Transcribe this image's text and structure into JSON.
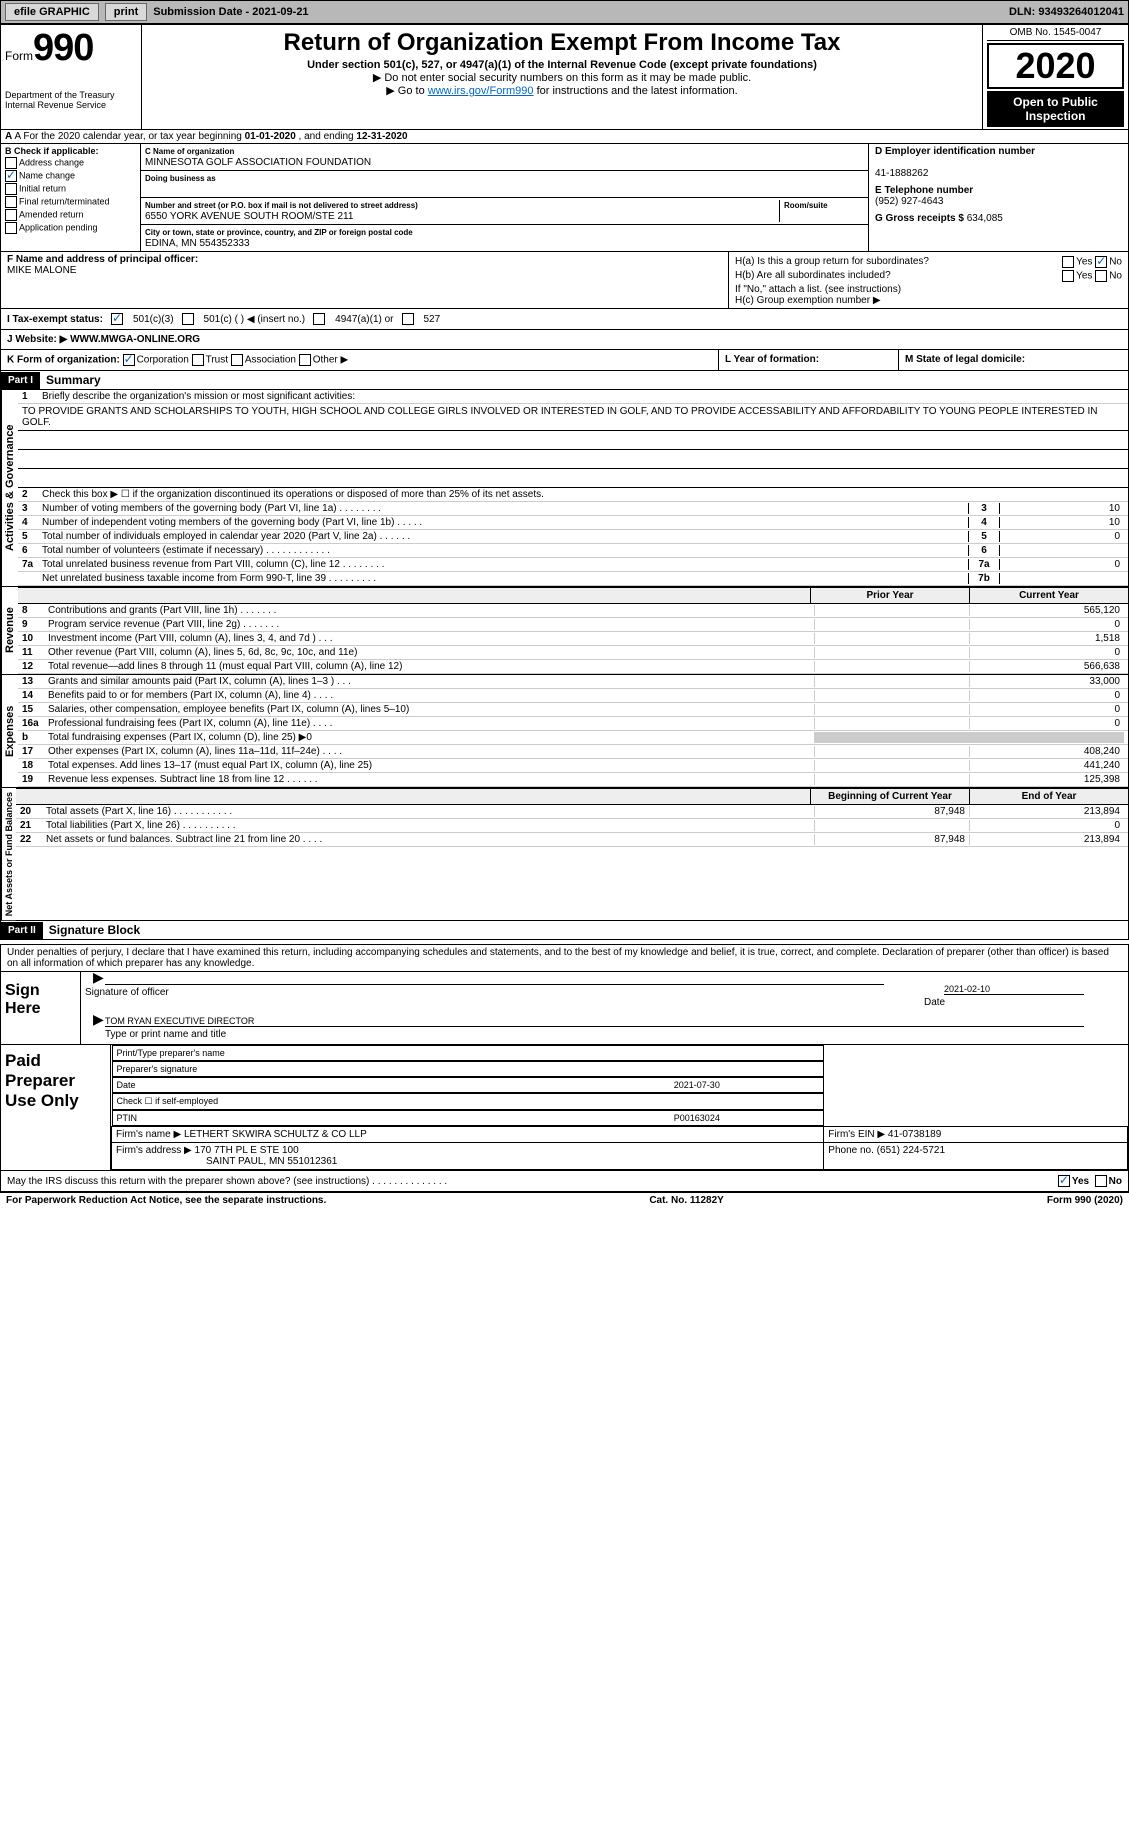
{
  "topbar": {
    "efile": "efile GRAPHIC",
    "print": "print",
    "sub_label": "Submission Date - ",
    "sub_date": "2021-09-21",
    "dln_label": "DLN: ",
    "dln": "93493264012041"
  },
  "header": {
    "form_word": "Form",
    "form_num": "990",
    "dept": "Department of the Treasury\nInternal Revenue Service",
    "title": "Return of Organization Exempt From Income Tax",
    "subtitle": "Under section 501(c), 527, or 4947(a)(1) of the Internal Revenue Code (except private foundations)",
    "note1": "▶ Do not enter social security numbers on this form as it may be made public.",
    "note2a": "▶ Go to ",
    "note2link": "www.irs.gov/Form990",
    "note2b": " for instructions and the latest information.",
    "omb": "OMB No. 1545-0047",
    "year": "2020",
    "open": "Open to Public Inspection"
  },
  "lineA": {
    "pre": "A For the 2020 calendar year, or tax year beginning ",
    "begin": "01-01-2020",
    "mid": " , and ending ",
    "end": "12-31-2020"
  },
  "colB": {
    "title": "B Check if applicable:",
    "items": [
      "Address change",
      "Name change",
      "Initial return",
      "Final return/terminated",
      "Amended return",
      "Application pending"
    ],
    "checked": [
      false,
      true,
      false,
      false,
      false,
      false
    ]
  },
  "colC": {
    "name_lbl": "C Name of organization",
    "name": "MINNESOTA GOLF ASSOCIATION FOUNDATION",
    "dba_lbl": "Doing business as",
    "dba": "",
    "addr_lbl": "Number and street (or P.O. box if mail is not delivered to street address)",
    "room_lbl": "Room/suite",
    "addr": "6550 YORK AVENUE SOUTH ROOM/STE 211",
    "city_lbl": "City or town, state or province, country, and ZIP or foreign postal code",
    "city": "EDINA, MN  554352333"
  },
  "colD": {
    "ein_lbl": "D Employer identification number",
    "ein": "41-1888262",
    "phone_lbl": "E Telephone number",
    "phone": "(952) 927-4643",
    "gross_lbl": "G Gross receipts $ ",
    "gross": "634,085"
  },
  "secF": {
    "lbl": "F Name and address of principal officer:",
    "name": "MIKE MALONE"
  },
  "secH": {
    "a": "H(a)  Is this a group return for subordinates?",
    "a_yes": "Yes",
    "a_no": "No",
    "b": "H(b)  Are all subordinates included?",
    "b_yes": "Yes",
    "b_no": "No",
    "b_note": "If \"No,\" attach a list. (see instructions)",
    "c": "H(c)  Group exemption number ▶"
  },
  "taxstatus": {
    "lbl": "I   Tax-exempt status:",
    "o1": "501(c)(3)",
    "o2": "501(c) (  ) ◀ (insert no.)",
    "o3": "4947(a)(1) or",
    "o4": "527"
  },
  "website": {
    "lbl": "J   Website: ▶",
    "val": "WWW.MWGA-ONLINE.ORG"
  },
  "lineK": {
    "lbl": "K Form of organization:",
    "o1": "Corporation",
    "o2": "Trust",
    "o3": "Association",
    "o4": "Other ▶"
  },
  "lineL": {
    "lbl": "L Year of formation:",
    "val": ""
  },
  "lineM": {
    "lbl": "M State of legal domicile:",
    "val": ""
  },
  "part1": {
    "hdr": "Part I",
    "title": "Summary"
  },
  "summary": {
    "q1": "Briefly describe the organization's mission or most significant activities:",
    "mission": "TO PROVIDE GRANTS AND SCHOLARSHIPS TO YOUTH, HIGH SCHOOL AND COLLEGE GIRLS INVOLVED OR INTERESTED IN GOLF, AND TO PROVIDE ACCESSABILITY AND AFFORDABILITY TO YOUNG PEOPLE INTERESTED IN GOLF.",
    "q2": "Check this box ▶ ☐  if the organization discontinued its operations or disposed of more than 25% of its net assets.",
    "lines": [
      {
        "n": "3",
        "t": "Number of voting members of the governing body (Part VI, line 1a)   .    .    .    .    .    .    .    .",
        "b": "3",
        "v": "10"
      },
      {
        "n": "4",
        "t": "Number of independent voting members of the governing body (Part VI, line 1b)   .    .    .    .    .",
        "b": "4",
        "v": "10"
      },
      {
        "n": "5",
        "t": "Total number of individuals employed in calendar year 2020 (Part V, line 2a)   .    .    .    .    .    .",
        "b": "5",
        "v": "0"
      },
      {
        "n": "6",
        "t": "Total number of volunteers (estimate if necessary)   .    .    .    .    .    .    .    .    .    .    .    .",
        "b": "6",
        "v": ""
      },
      {
        "n": "7a",
        "t": "Total unrelated business revenue from Part VIII, column (C), line 12   .    .    .    .    .    .    .    .",
        "b": "7a",
        "v": "0"
      },
      {
        "n": "",
        "t": "Net unrelated business taxable income from Form 990-T, line 39   .    .    .    .    .    .    .    .    .",
        "b": "7b",
        "v": ""
      }
    ],
    "col_prior": "Prior Year",
    "col_current": "Current Year",
    "rev": [
      {
        "n": "8",
        "t": "Contributions and grants (Part VIII, line 1h)   .    .    .    .    .    .    .",
        "pv": "",
        "cv": "565,120"
      },
      {
        "n": "9",
        "t": "Program service revenue (Part VIII, line 2g)   .    .    .    .    .    .    .",
        "pv": "",
        "cv": "0"
      },
      {
        "n": "10",
        "t": "Investment income (Part VIII, column (A), lines 3, 4, and 7d )   .    .    .",
        "pv": "",
        "cv": "1,518"
      },
      {
        "n": "11",
        "t": "Other revenue (Part VIII, column (A), lines 5, 6d, 8c, 9c, 10c, and 11e)",
        "pv": "",
        "cv": "0"
      },
      {
        "n": "12",
        "t": "Total revenue—add lines 8 through 11 (must equal Part VIII, column (A), line 12)",
        "pv": "",
        "cv": "566,638"
      }
    ],
    "exp": [
      {
        "n": "13",
        "t": "Grants and similar amounts paid (Part IX, column (A), lines 1–3 )   .    .    .",
        "pv": "",
        "cv": "33,000"
      },
      {
        "n": "14",
        "t": "Benefits paid to or for members (Part IX, column (A), line 4)   .    .    .    .",
        "pv": "",
        "cv": "0"
      },
      {
        "n": "15",
        "t": "Salaries, other compensation, employee benefits (Part IX, column (A), lines 5–10)",
        "pv": "",
        "cv": "0"
      },
      {
        "n": "16a",
        "t": "Professional fundraising fees (Part IX, column (A), line 11e)   .    .    .    .",
        "pv": "",
        "cv": "0"
      },
      {
        "n": "b",
        "t": "Total fundraising expenses (Part IX, column (D), line 25) ▶0",
        "pv": "shaded",
        "cv": "shaded"
      },
      {
        "n": "17",
        "t": "Other expenses (Part IX, column (A), lines 11a–11d, 11f–24e)   .    .    .    .",
        "pv": "",
        "cv": "408,240"
      },
      {
        "n": "18",
        "t": "Total expenses. Add lines 13–17 (must equal Part IX, column (A), line 25)",
        "pv": "",
        "cv": "441,240"
      },
      {
        "n": "19",
        "t": "Revenue less expenses. Subtract line 18 from line 12   .    .    .    .    .    .",
        "pv": "",
        "cv": "125,398"
      }
    ],
    "col_begin": "Beginning of Current Year",
    "col_end": "End of Year",
    "net": [
      {
        "n": "20",
        "t": "Total assets (Part X, line 16)   .    .    .    .    .    .    .    .    .    .    .",
        "pv": "87,948",
        "cv": "213,894"
      },
      {
        "n": "21",
        "t": "Total liabilities (Part X, line 26)   .    .    .    .    .    .    .    .    .    .",
        "pv": "",
        "cv": "0"
      },
      {
        "n": "22",
        "t": "Net assets or fund balances. Subtract line 21 from line 20   .    .    .    .",
        "pv": "87,948",
        "cv": "213,894"
      }
    ]
  },
  "sidebars": {
    "gov": "Activities & Governance",
    "rev": "Revenue",
    "exp": "Expenses",
    "net": "Net Assets or Fund Balances"
  },
  "part2": {
    "hdr": "Part II",
    "title": "Signature Block"
  },
  "sig": {
    "declare": "Under penalties of perjury, I declare that I have examined this return, including accompanying schedules and statements, and to the best of my knowledge and belief, it is true, correct, and complete. Declaration of preparer (other than officer) is based on all information of which preparer has any knowledge.",
    "sign_here": "Sign Here",
    "sig_officer": "Signature of officer",
    "date_lbl": "Date",
    "date": "2021-02-10",
    "name": "TOM RYAN EXECUTIVE DIRECTOR",
    "name_lbl": "Type or print name and title",
    "paid": "Paid Preparer Use Only",
    "prep_name_lbl": "Print/Type preparer's name",
    "prep_sig_lbl": "Preparer's signature",
    "prep_date_lbl": "Date",
    "prep_date": "2021-07-30",
    "check_lbl": "Check ☐ if self-employed",
    "ptin_lbl": "PTIN",
    "ptin": "P00163024",
    "firm_name_lbl": "Firm's name   ▶",
    "firm_name": "LETHERT SKWIRA SCHULTZ & CO LLP",
    "firm_ein_lbl": "Firm's EIN ▶",
    "firm_ein": "41-0738189",
    "firm_addr_lbl": "Firm's address ▶",
    "firm_addr": "170 7TH PL E STE 100",
    "firm_city": "SAINT PAUL, MN  551012361",
    "phone_lbl": "Phone no.",
    "phone": "(651) 224-5721",
    "discuss": "May the IRS discuss this return with the preparer shown above? (see instructions)   .    .    .    .    .    .    .    .    .    .    .    .    .    .",
    "yes": "Yes",
    "no": "No"
  },
  "footer": {
    "left": "For Paperwork Reduction Act Notice, see the separate instructions.",
    "mid": "Cat. No. 11282Y",
    "right": "Form 990 (2020)"
  }
}
